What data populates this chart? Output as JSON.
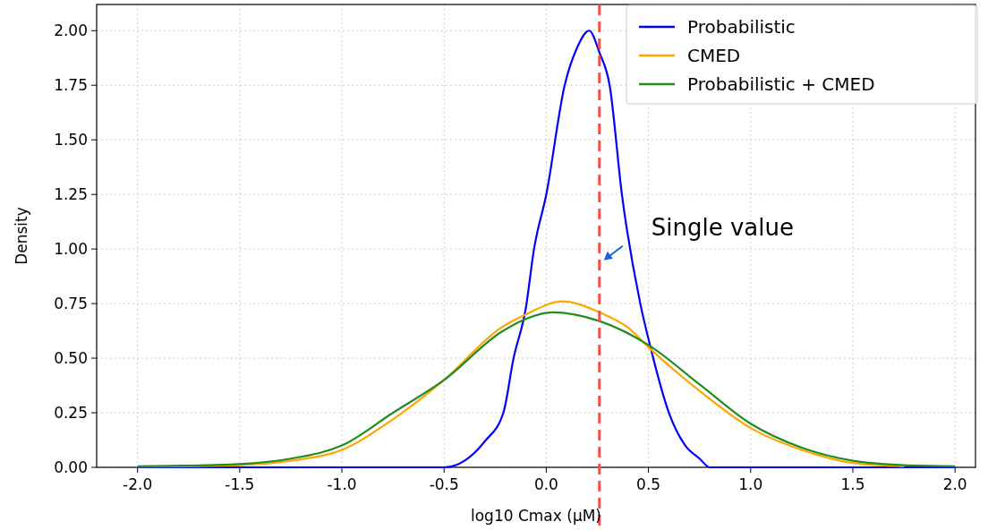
{
  "chart_data": {
    "type": "line",
    "xlabel": "log10 Cmax (µM)",
    "ylabel": "Density",
    "xlim": [
      -2.2,
      2.1
    ],
    "ylim": [
      0,
      2.12
    ],
    "xticks": [
      {
        "value": -2,
        "label": "-2.0"
      },
      {
        "value": -1.5,
        "label": "-1.5"
      },
      {
        "value": -1,
        "label": "-1.0"
      },
      {
        "value": -0.5,
        "label": "-0.5"
      },
      {
        "value": 0,
        "label": "0.0"
      },
      {
        "value": 0.5,
        "label": "0.5"
      },
      {
        "value": 1,
        "label": "1.0"
      },
      {
        "value": 1.5,
        "label": "1.5"
      },
      {
        "value": 2,
        "label": "2.0"
      }
    ],
    "yticks": [
      {
        "value": 0,
        "label": "0.00"
      },
      {
        "value": 0.25,
        "label": "0.25"
      },
      {
        "value": 0.5,
        "label": "0.50"
      },
      {
        "value": 0.75,
        "label": "0.75"
      },
      {
        "value": 1,
        "label": "1.00"
      },
      {
        "value": 1.25,
        "label": "1.25"
      },
      {
        "value": 1.5,
        "label": "1.50"
      },
      {
        "value": 1.75,
        "label": "1.75"
      },
      {
        "value": 2,
        "label": "2.00"
      }
    ],
    "grid": true,
    "legend": "top right",
    "marker": "none",
    "line_style": "solid",
    "series": [
      {
        "name": "Probabilistic",
        "color": "#0000ff",
        "x": [
          -2,
          -1.5,
          -1,
          -0.5,
          -0.4,
          -0.3,
          -0.21,
          -0.16,
          -0.1,
          -0.06,
          0,
          0.09,
          0.15,
          0.21,
          0.26,
          0.31,
          0.37,
          0.46,
          0.51,
          0.6,
          0.68,
          0.75,
          0.8,
          1,
          1.5,
          2
        ],
        "values": [
          0,
          0,
          0,
          0,
          0.03,
          0.12,
          0.25,
          0.5,
          0.73,
          1,
          1.25,
          1.75,
          1.92,
          2,
          1.9,
          1.75,
          1.25,
          0.75,
          0.55,
          0.25,
          0.1,
          0.04,
          0,
          0,
          0,
          0
        ]
      },
      {
        "name": "CMED",
        "color": "#ffa500",
        "x": [
          -2,
          -1.75,
          -1.5,
          -1.25,
          -1,
          -0.75,
          -0.5,
          -0.22,
          -0.1,
          0.08,
          0.26,
          0.4,
          0.5,
          0.75,
          1,
          1.25,
          1.5,
          1.75
        ],
        "values": [
          0.003,
          0.005,
          0.01,
          0.03,
          0.08,
          0.22,
          0.4,
          0.64,
          0.7,
          0.76,
          0.71,
          0.64,
          0.55,
          0.35,
          0.18,
          0.08,
          0.02,
          0.005
        ]
      },
      {
        "name": "Probabilistic + CMED",
        "color": "#228b22",
        "x": [
          -2,
          -1.75,
          -1.5,
          -1.25,
          -1,
          -0.75,
          -0.5,
          -0.22,
          -0.1,
          0.03,
          0.26,
          0.5,
          0.75,
          1,
          1.25,
          1.5,
          1.75,
          2
        ],
        "values": [
          0.005,
          0.008,
          0.015,
          0.04,
          0.1,
          0.25,
          0.4,
          0.62,
          0.68,
          0.71,
          0.67,
          0.56,
          0.38,
          0.2,
          0.09,
          0.03,
          0.01,
          0.005
        ]
      }
    ],
    "ref_lines": [
      {
        "axis": "x",
        "value": 0.26,
        "color": "#f05050",
        "line_style": "dashed"
      }
    ],
    "annotations": [
      {
        "text": "Single value",
        "x": 0.26,
        "y": 0.94
      }
    ]
  }
}
